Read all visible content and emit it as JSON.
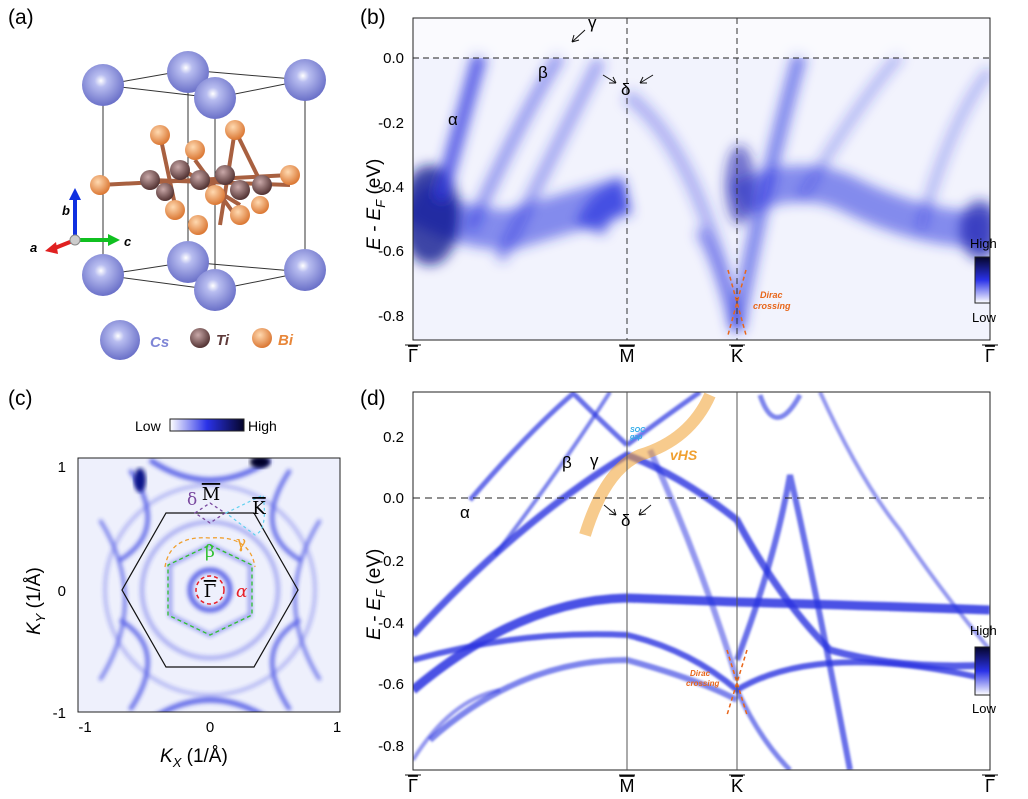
{
  "panels": {
    "a": {
      "label": "(a)",
      "axes": {
        "a": "a",
        "b": "b",
        "c": "c"
      },
      "legend": [
        {
          "name": "Cs",
          "color": "#7f86d6"
        },
        {
          "name": "Ti",
          "color": "#5e3a3a"
        },
        {
          "name": "Bi",
          "color": "#e8873a"
        }
      ]
    },
    "b": {
      "label": "(b)",
      "ylabel_main": "E - E",
      "ylabel_sub": "F",
      "ylabel_unit": " (eV)",
      "yticks": [
        "0.0",
        "-0.2",
        "-0.4",
        "-0.6",
        "-0.8"
      ],
      "kpoints": [
        "Γ",
        "M",
        "K",
        "Γ"
      ],
      "bands": {
        "alpha": "α",
        "beta": "β",
        "gamma": "γ",
        "delta": "δ"
      },
      "annotation": [
        "Dirac",
        "crossing"
      ],
      "colorbar": {
        "high": "High",
        "low": "Low"
      }
    },
    "c": {
      "label": "(c)",
      "colorbar": {
        "low": "Low",
        "high": "High"
      },
      "xlabel_main": "K",
      "xlabel_sub": "X",
      "ylabel_main": "K",
      "ylabel_sub": "Y",
      "unit": " (1/Å)",
      "xticks": [
        "-1",
        "0",
        "1"
      ],
      "yticks": [
        "1",
        "0",
        "-1"
      ],
      "points": {
        "gamma": "Γ",
        "m": "M",
        "k": "K"
      },
      "bands": {
        "alpha": "α",
        "beta": "β",
        "gamma": "γ",
        "delta": "δ"
      },
      "band_colors": {
        "alpha": "#e8202a",
        "beta": "#2fc02f",
        "gamma": "#f0a030",
        "delta": "#7a4aa0",
        "k": "#5fd0f0"
      }
    },
    "d": {
      "label": "(d)",
      "ylabel_main": "E - E",
      "ylabel_sub": "F",
      "ylabel_unit": " (eV)",
      "yticks": [
        "0.2",
        "0.0",
        "-0.2",
        "-0.4",
        "-0.6",
        "-0.8"
      ],
      "kpoints": [
        "Γ",
        "M",
        "K",
        "Γ"
      ],
      "bands": {
        "alpha": "α",
        "beta": "β",
        "gamma": "γ",
        "delta": "δ"
      },
      "soc": [
        "SOC",
        "gap"
      ],
      "vhs": "vHS",
      "annotation": [
        "Dirac",
        "crossing"
      ],
      "colorbar": {
        "high": "High",
        "low": "Low"
      }
    }
  },
  "colors": {
    "intensity": "#1a22d8",
    "dirac": "#e8661a",
    "vhs": "#f0a030",
    "soc": "#2aa8e8"
  }
}
